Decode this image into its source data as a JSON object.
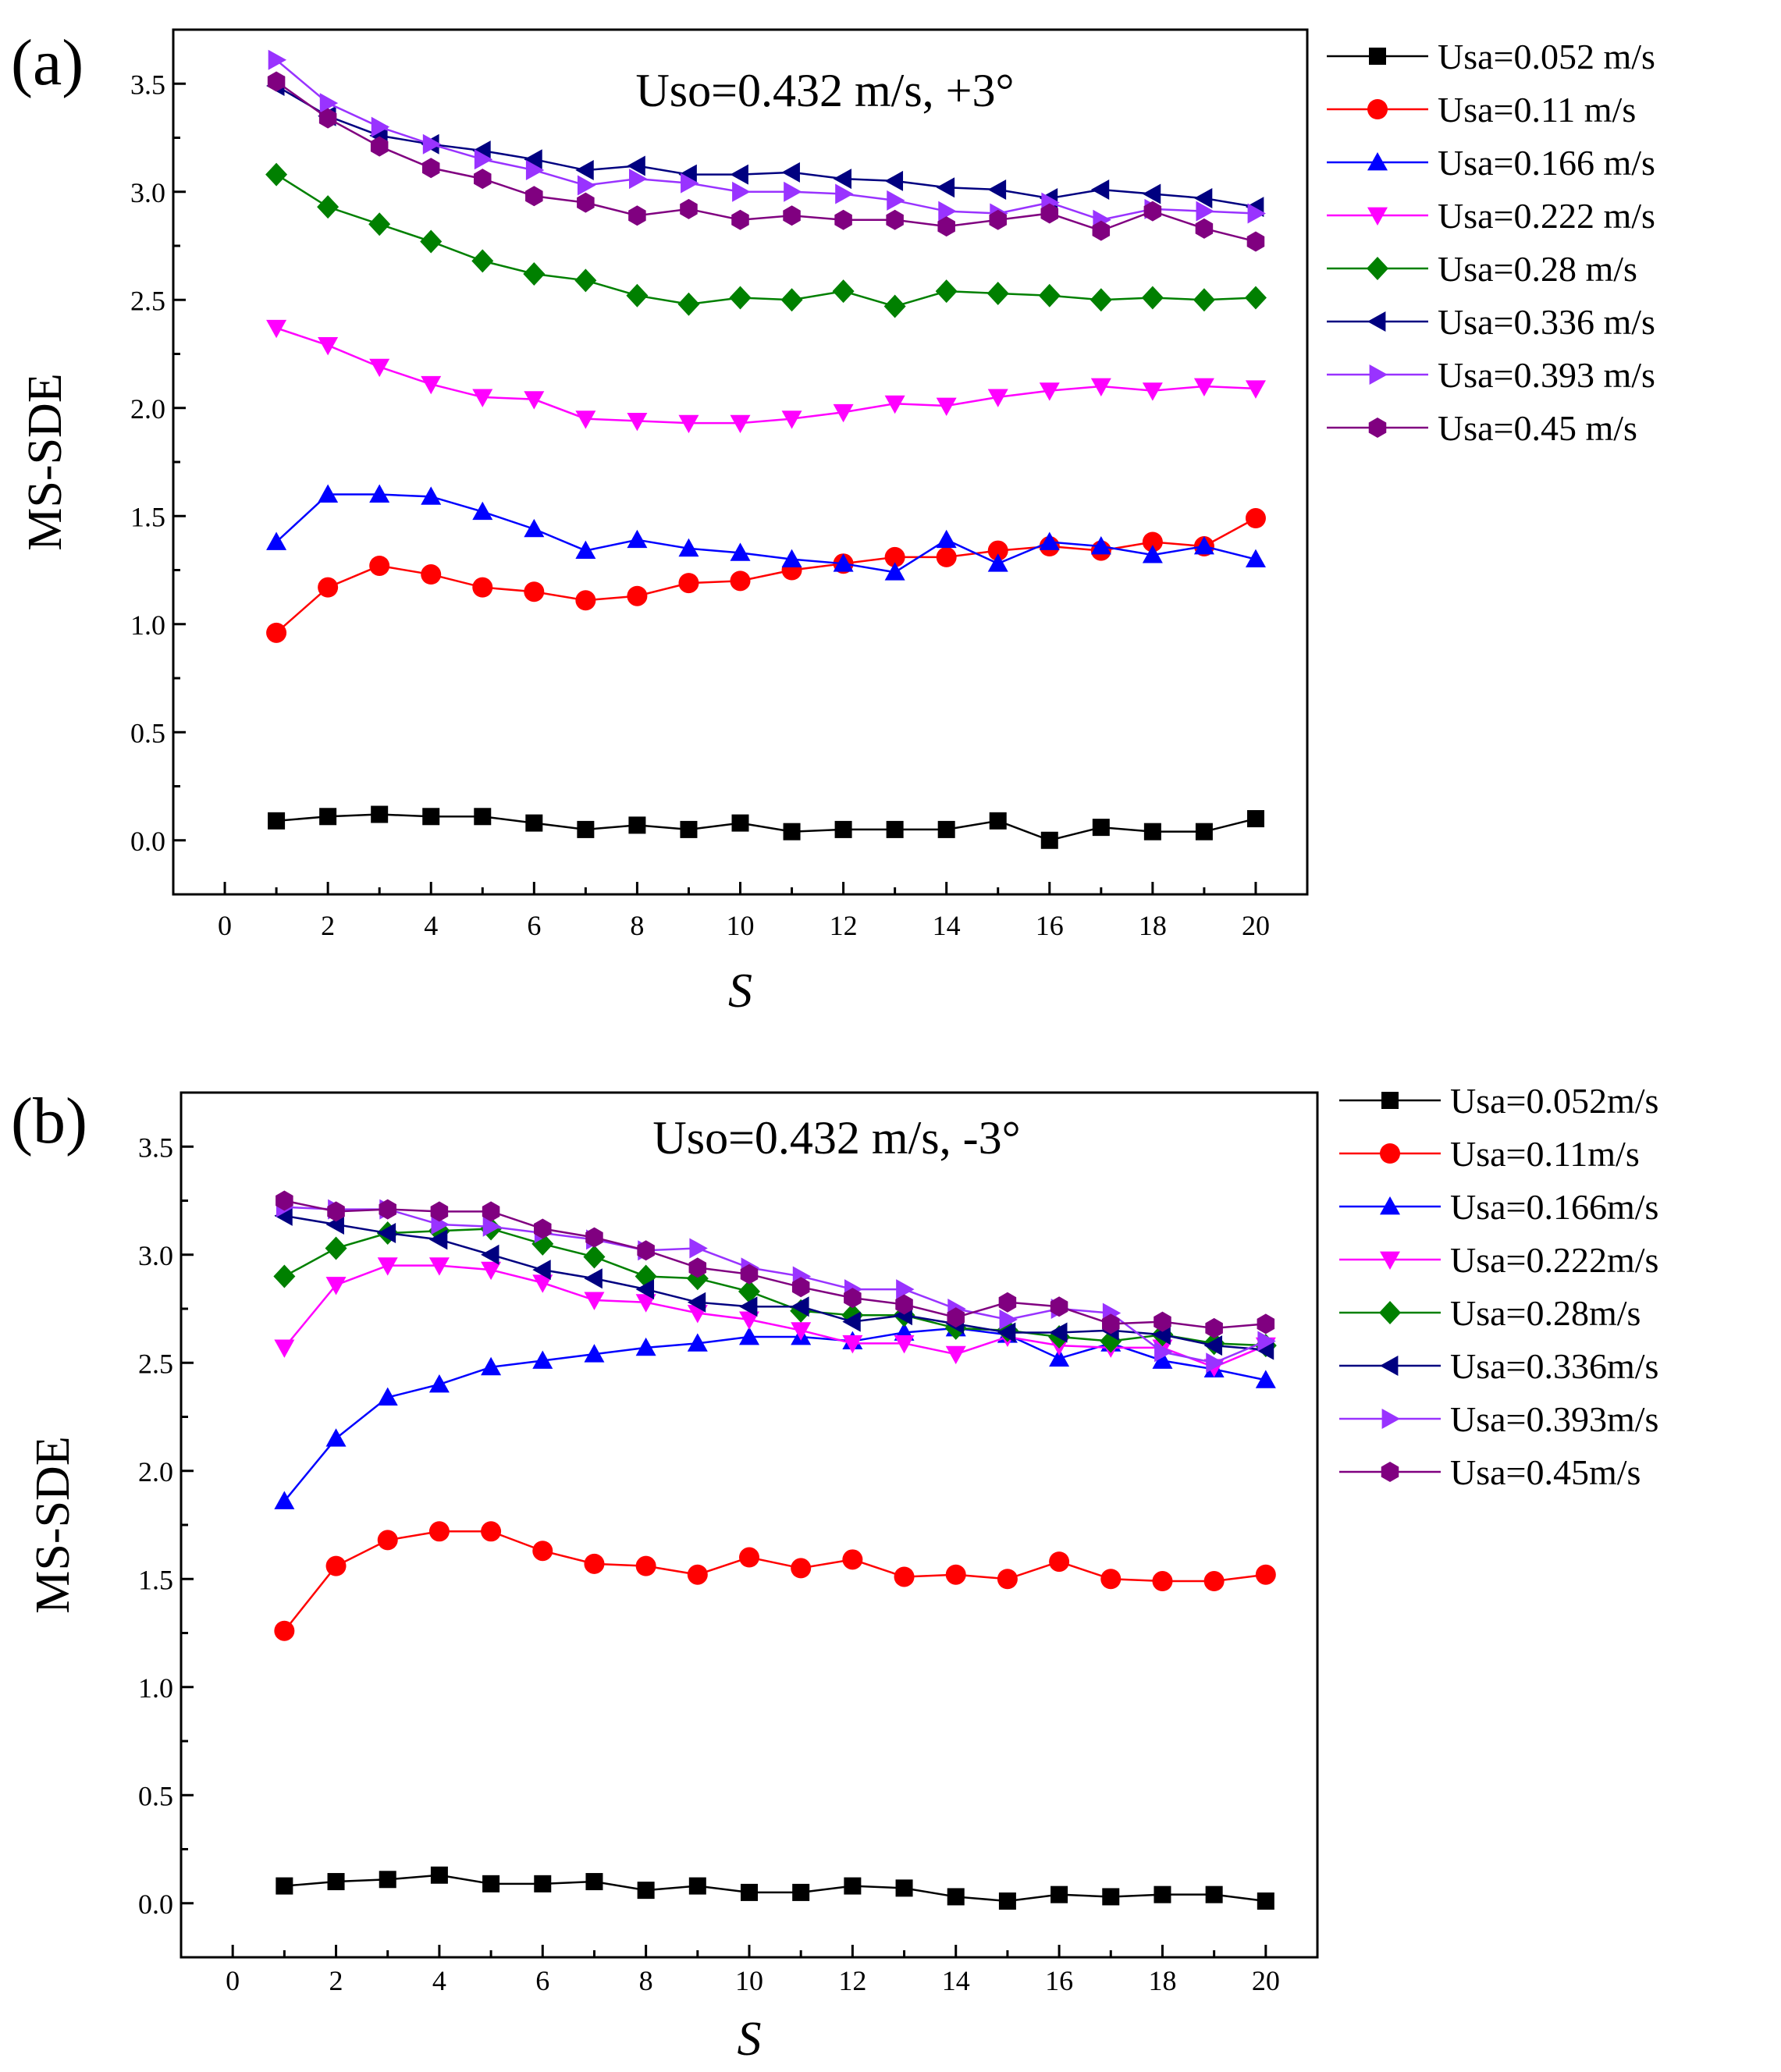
{
  "chart_data": [
    {
      "type": "line",
      "panel_label": "(a)",
      "annotation": "Uso=0.432 m/s, +3°",
      "xlabel": "S",
      "ylabel": "MS-SDE",
      "xlim": [
        -1,
        21
      ],
      "ylim": [
        -0.25,
        3.75
      ],
      "xticks": [
        0,
        2,
        4,
        6,
        8,
        10,
        12,
        14,
        16,
        18,
        20
      ],
      "xtick_labels": [
        "0",
        "2",
        "4",
        "6",
        "8",
        "10",
        "12",
        "14",
        "16",
        "18",
        "20"
      ],
      "yticks": [
        0.0,
        0.5,
        1.0,
        1.5,
        2.0,
        2.5,
        3.0,
        3.5
      ],
      "ytick_labels": [
        "0.0",
        "0.5",
        "1.0",
        "1.5",
        "2.0",
        "2.5",
        "3.0",
        "3.5"
      ],
      "legend_position": "outside-right",
      "x": [
        1,
        2,
        3,
        4,
        5,
        6,
        7,
        8,
        9,
        10,
        11,
        12,
        13,
        14,
        15,
        16,
        17,
        18,
        19,
        20
      ],
      "series": [
        {
          "name": "Usa=0.052 m/s",
          "color": "#000000",
          "marker": "square",
          "values": [
            0.09,
            0.11,
            0.12,
            0.11,
            0.11,
            0.08,
            0.05,
            0.07,
            0.05,
            0.08,
            0.04,
            0.05,
            0.05,
            0.05,
            0.09,
            0.0,
            0.06,
            0.04,
            0.04,
            0.1
          ]
        },
        {
          "name": "Usa=0.11 m/s",
          "color": "#ff0000",
          "marker": "circle",
          "values": [
            0.96,
            1.17,
            1.27,
            1.23,
            1.17,
            1.15,
            1.11,
            1.13,
            1.19,
            1.2,
            1.25,
            1.28,
            1.31,
            1.31,
            1.34,
            1.36,
            1.34,
            1.38,
            1.36,
            1.49
          ]
        },
        {
          "name": "Usa=0.166 m/s",
          "color": "#0000ff",
          "marker": "triangle-up",
          "values": [
            1.38,
            1.6,
            1.6,
            1.59,
            1.52,
            1.44,
            1.34,
            1.39,
            1.35,
            1.33,
            1.3,
            1.28,
            1.24,
            1.39,
            1.28,
            1.38,
            1.36,
            1.32,
            1.36,
            1.3
          ]
        },
        {
          "name": "Usa=0.222 m/s",
          "color": "#ff00ff",
          "marker": "triangle-down",
          "values": [
            2.37,
            2.29,
            2.19,
            2.11,
            2.05,
            2.04,
            1.95,
            1.94,
            1.93,
            1.93,
            1.95,
            1.98,
            2.02,
            2.01,
            2.05,
            2.08,
            2.1,
            2.08,
            2.1,
            2.09
          ]
        },
        {
          "name": "Usa=0.28 m/s",
          "color": "#008000",
          "marker": "diamond",
          "values": [
            3.08,
            2.93,
            2.85,
            2.77,
            2.68,
            2.62,
            2.59,
            2.52,
            2.48,
            2.51,
            2.5,
            2.54,
            2.47,
            2.54,
            2.53,
            2.52,
            2.5,
            2.51,
            2.5,
            2.51
          ]
        },
        {
          "name": "Usa=0.336 m/s",
          "color": "#000080",
          "marker": "triangle-left",
          "values": [
            3.49,
            3.35,
            3.26,
            3.22,
            3.19,
            3.15,
            3.1,
            3.12,
            3.08,
            3.08,
            3.09,
            3.06,
            3.05,
            3.02,
            3.01,
            2.97,
            3.01,
            2.99,
            2.97,
            2.93
          ]
        },
        {
          "name": "Usa=0.393 m/s",
          "color": "#9933ff",
          "marker": "triangle-right",
          "values": [
            3.61,
            3.41,
            3.3,
            3.22,
            3.15,
            3.1,
            3.03,
            3.06,
            3.04,
            3.0,
            3.0,
            2.99,
            2.96,
            2.91,
            2.9,
            2.95,
            2.87,
            2.92,
            2.91,
            2.9
          ]
        },
        {
          "name": "Usa=0.45 m/s",
          "color": "#800080",
          "marker": "hexagon",
          "values": [
            3.51,
            3.34,
            3.21,
            3.11,
            3.06,
            2.98,
            2.95,
            2.89,
            2.92,
            2.87,
            2.89,
            2.87,
            2.87,
            2.84,
            2.87,
            2.9,
            2.82,
            2.91,
            2.83,
            2.77
          ]
        }
      ]
    },
    {
      "type": "line",
      "panel_label": "(b)",
      "annotation": "Uso=0.432 m/s, -3°",
      "xlabel": "S",
      "ylabel": "MS-SDE",
      "xlim": [
        -1,
        21
      ],
      "ylim": [
        -0.25,
        3.75
      ],
      "xticks": [
        0,
        2,
        4,
        6,
        8,
        10,
        12,
        14,
        16,
        18,
        20
      ],
      "xtick_labels": [
        "0",
        "2",
        "4",
        "6",
        "8",
        "10",
        "12",
        "14",
        "16",
        "18",
        "20"
      ],
      "yticks": [
        0.0,
        0.5,
        1.0,
        1.5,
        2.0,
        2.5,
        3.0,
        3.5
      ],
      "ytick_labels": [
        "0.0",
        "0.5",
        "1.0",
        "1.5",
        "2.0",
        "2.5",
        "3.0",
        "3.5"
      ],
      "legend_position": "outside-right",
      "x": [
        1,
        2,
        3,
        4,
        5,
        6,
        7,
        8,
        9,
        10,
        11,
        12,
        13,
        14,
        15,
        16,
        17,
        18,
        19,
        20
      ],
      "series": [
        {
          "name": "Usa=0.052m/s",
          "color": "#000000",
          "marker": "square",
          "values": [
            0.08,
            0.1,
            0.11,
            0.13,
            0.09,
            0.09,
            0.1,
            0.06,
            0.08,
            0.05,
            0.05,
            0.08,
            0.07,
            0.03,
            0.01,
            0.04,
            0.03,
            0.04,
            0.04,
            0.01
          ]
        },
        {
          "name": "Usa=0.11m/s",
          "color": "#ff0000",
          "marker": "circle",
          "values": [
            1.26,
            1.56,
            1.68,
            1.72,
            1.72,
            1.63,
            1.57,
            1.56,
            1.52,
            1.6,
            1.55,
            1.59,
            1.51,
            1.52,
            1.5,
            1.58,
            1.5,
            1.49,
            1.49,
            1.52
          ]
        },
        {
          "name": "Usa=0.166m/s",
          "color": "#0000ff",
          "marker": "triangle-up",
          "values": [
            1.86,
            2.15,
            2.34,
            2.4,
            2.48,
            2.51,
            2.54,
            2.57,
            2.59,
            2.62,
            2.62,
            2.6,
            2.64,
            2.66,
            2.63,
            2.52,
            2.59,
            2.51,
            2.47,
            2.42
          ]
        },
        {
          "name": "Usa=0.222m/s",
          "color": "#ff00ff",
          "marker": "triangle-down",
          "values": [
            2.57,
            2.86,
            2.95,
            2.95,
            2.93,
            2.87,
            2.79,
            2.78,
            2.73,
            2.7,
            2.65,
            2.59,
            2.59,
            2.54,
            2.62,
            2.58,
            2.57,
            2.57,
            2.48,
            2.58
          ]
        },
        {
          "name": "Usa=0.28m/s",
          "color": "#008000",
          "marker": "diamond",
          "values": [
            2.9,
            3.03,
            3.1,
            3.11,
            3.12,
            3.05,
            2.99,
            2.9,
            2.89,
            2.83,
            2.74,
            2.72,
            2.72,
            2.66,
            2.65,
            2.62,
            2.6,
            2.63,
            2.59,
            2.58
          ]
        },
        {
          "name": "Usa=0.336m/s",
          "color": "#000080",
          "marker": "triangle-left",
          "values": [
            3.18,
            3.14,
            3.1,
            3.07,
            3.0,
            2.93,
            2.89,
            2.84,
            2.78,
            2.76,
            2.76,
            2.69,
            2.72,
            2.68,
            2.64,
            2.64,
            2.65,
            2.63,
            2.58,
            2.56
          ]
        },
        {
          "name": "Usa=0.393m/s",
          "color": "#9933ff",
          "marker": "triangle-right",
          "values": [
            3.22,
            3.21,
            3.21,
            3.14,
            3.13,
            3.1,
            3.07,
            3.02,
            3.03,
            2.94,
            2.9,
            2.84,
            2.84,
            2.75,
            2.7,
            2.75,
            2.73,
            2.55,
            2.5,
            2.6
          ]
        },
        {
          "name": "Usa=0.45m/s",
          "color": "#800080",
          "marker": "hexagon",
          "values": [
            3.25,
            3.2,
            3.21,
            3.2,
            3.2,
            3.12,
            3.08,
            3.02,
            2.94,
            2.91,
            2.85,
            2.8,
            2.77,
            2.71,
            2.78,
            2.76,
            2.68,
            2.69,
            2.66,
            2.68
          ]
        }
      ]
    }
  ]
}
